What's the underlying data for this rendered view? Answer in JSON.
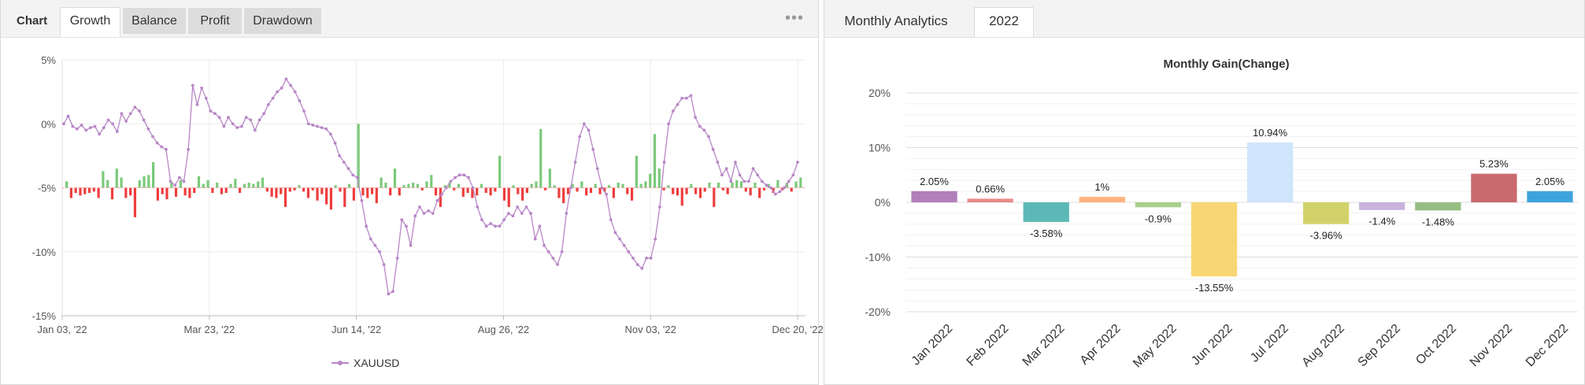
{
  "left": {
    "tabs": [
      {
        "label": "Chart"
      },
      {
        "label": "Growth"
      },
      {
        "label": "Balance"
      },
      {
        "label": "Profit"
      },
      {
        "label": "Drawdown"
      }
    ],
    "more_icon": "ellipsis-icon",
    "more_label": "•••"
  },
  "right": {
    "tabs": [
      {
        "label": "Monthly Analytics"
      },
      {
        "label": "2022"
      }
    ]
  },
  "chart_data": [
    {
      "type": "line",
      "title": "",
      "xlabel": "",
      "ylabel": "",
      "ylim": [
        -15,
        5
      ],
      "yticks": [
        5,
        0,
        -5,
        -10,
        -15
      ],
      "ytick_labels": [
        "5%",
        "0%",
        "-5%",
        "-10%",
        "-15%"
      ],
      "xtick_labels": [
        "Jan 03, '22",
        "Mar 23, '22",
        "Jun 14, '22",
        "Aug 26, '22",
        "Nov 03, '22",
        "Dec 20, '22"
      ],
      "grid": true,
      "legend_position": "bottom-center",
      "series": [
        {
          "name": "XAUUSD",
          "color": "#b886c6",
          "values": [
            0,
            0.6,
            -0.2,
            -0.4,
            -0.1,
            -0.5,
            -0.3,
            -0.2,
            -0.8,
            -0.3,
            0.3,
            0.0,
            -0.6,
            0.8,
            0.2,
            0.8,
            1.3,
            1.0,
            0.3,
            -0.4,
            -1.0,
            -1.5,
            -1.8,
            -2.0,
            -4.5,
            -4.8,
            -4.2,
            -4.5,
            -2.0,
            3.0,
            1.5,
            2.8,
            2.0,
            1.0,
            0.8,
            0.5,
            -0.2,
            0.5,
            0.0,
            -0.3,
            -0.2,
            0.5,
            0.3,
            -0.5,
            0.3,
            0.8,
            1.5,
            2.0,
            2.5,
            2.8,
            3.5,
            3.0,
            2.5,
            1.8,
            1.0,
            0.0,
            -0.1,
            -0.2,
            -0.3,
            -0.4,
            -0.8,
            -1.5,
            -2.5,
            -3.0,
            -3.5,
            -4.0,
            -4.2,
            -6.0,
            -8.0,
            -9.0,
            -9.5,
            -10.0,
            -11.0,
            -13.3,
            -13.1,
            -10.5,
            -7.5,
            -8.0,
            -9.5,
            -7.2,
            -6.5,
            -7.0,
            -6.8,
            -7.0,
            -6.0,
            -5.5,
            -5.0,
            -4.5,
            -4.2,
            -4.0,
            -4.0,
            -4.2,
            -5.0,
            -6.5,
            -7.5,
            -8.0,
            -7.8,
            -8.0,
            -8.0,
            -7.5,
            -7.0,
            -7.2,
            -6.5,
            -7.0,
            -6.5,
            -7.0,
            -9.0,
            -8.0,
            -9.5,
            -10.0,
            -10.5,
            -11.0,
            -10.0,
            -7.0,
            -5.0,
            -3.0,
            -1.0,
            0.0,
            -0.5,
            -2.0,
            -3.5,
            -5.0,
            -5.5,
            -7.5,
            -8.5,
            -9.0,
            -9.5,
            -10.0,
            -10.5,
            -11.0,
            -11.3,
            -10.5,
            -10.5,
            -9.0,
            -6.5,
            -3.0,
            0.0,
            1.0,
            1.5,
            2.0,
            2.0,
            2.2,
            0.5,
            -0.2,
            -0.5,
            -1.0,
            -2.0,
            -3.0,
            -4.0,
            -3.5,
            -4.5,
            -3.0,
            -4.0,
            -4.5,
            -4.5,
            -3.5,
            -4.0,
            -4.5,
            -4.8,
            -5.0,
            -5.5,
            -5.3,
            -5.0,
            -4.5,
            -4.0,
            -3.0
          ]
        }
      ],
      "bars_positive_color": "#7ac97a",
      "bars_negative_color": "#ee3d3d",
      "bars": [
        0.5,
        -0.8,
        -0.4,
        -0.6,
        -0.5,
        -0.4,
        -0.3,
        -0.8,
        1.3,
        0.6,
        -0.9,
        1.5,
        0.8,
        -0.8,
        -0.6,
        -2.3,
        0.6,
        0.9,
        1.0,
        2.0,
        -1.0,
        -0.5,
        -0.9,
        0.4,
        -0.7,
        0.6,
        -0.6,
        -0.8,
        -0.4,
        0.9,
        0.3,
        0.6,
        -0.4,
        0.4,
        -0.5,
        -0.4,
        0.3,
        0.7,
        -0.4,
        0.3,
        0.4,
        0.3,
        0.5,
        0.8,
        -0.3,
        -0.7,
        -0.8,
        -0.5,
        -1.5,
        -0.3,
        -0.2,
        0.2,
        -0.3,
        -0.8,
        -0.2,
        -1.0,
        -0.5,
        -1.3,
        -1.7,
        0.2,
        -0.3,
        -1.5,
        0.3,
        -1.0,
        5.0,
        -0.6,
        -0.8,
        -0.5,
        -1.2,
        0.8,
        0.4,
        -0.6,
        1.5,
        -0.6,
        0.2,
        0.3,
        0.4,
        0.3,
        -0.2,
        0.5,
        1.0,
        -0.6,
        -1.5,
        0.2,
        0.4,
        -0.2,
        0.3,
        -0.7,
        -0.4,
        -0.8,
        -0.6,
        0.3,
        -0.4,
        -0.6,
        -0.3,
        2.5,
        -1.0,
        -1.5,
        0.2,
        -0.5,
        -1.0,
        -0.4,
        0.3,
        0.5,
        4.6,
        -0.2,
        1.5,
        0.2,
        -0.8,
        -1.2,
        -0.5,
        0.3,
        -0.3,
        0.5,
        -0.6,
        -0.4,
        0.3,
        -0.5,
        -0.3,
        0.2,
        -0.8,
        0.4,
        0.3,
        -0.5,
        -1.0,
        2.5,
        0.3,
        0.5,
        1.1,
        4.2,
        1.5,
        -0.2,
        0.2,
        -0.5,
        -0.6,
        -1.4,
        -0.5,
        0.3,
        -0.5,
        -0.8,
        -0.3,
        0.4,
        -1.5,
        0.4,
        -0.2,
        -0.5,
        0.4,
        0.6,
        0.5,
        -0.3,
        -0.6,
        0.4,
        -0.8,
        -0.2,
        0.3,
        -0.4,
        0.6,
        -0.2,
        0.4,
        -0.3,
        0.5,
        0.8
      ]
    },
    {
      "type": "bar",
      "title": "Monthly Gain(Change)",
      "xlabel": "",
      "ylabel": "",
      "ylim": [
        -20,
        20
      ],
      "yticks": [
        20,
        10,
        0,
        -10,
        -20
      ],
      "ytick_labels": [
        "20%",
        "10%",
        "0%",
        "-10%",
        "-20%"
      ],
      "grid": true,
      "categories": [
        "Jan 2022",
        "Feb 2022",
        "Mar 2022",
        "Apr 2022",
        "May 2022",
        "Jun 2022",
        "Jul 2022",
        "Aug 2022",
        "Sep 2022",
        "Oct 2022",
        "Nov 2022",
        "Dec 2022"
      ],
      "values": [
        2.05,
        0.66,
        -3.58,
        1,
        -0.9,
        -13.55,
        10.94,
        -3.96,
        -1.4,
        -1.48,
        5.23,
        2.05
      ],
      "labels": [
        "2.05%",
        "0.66%",
        "-3.58%",
        "1%",
        "-0.9%",
        "-13.55%",
        "10.94%",
        "-3.96%",
        "-1.4%",
        "-1.48%",
        "5.23%",
        "2.05%"
      ],
      "colors": [
        "#b27fb9",
        "#e88a86",
        "#5cb8b6",
        "#ffb380",
        "#a8d08d",
        "#f7d774",
        "#cfe5fb",
        "#d2d26a",
        "#c9b3de",
        "#97bd83",
        "#c96a6e",
        "#3fa3db"
      ]
    }
  ]
}
